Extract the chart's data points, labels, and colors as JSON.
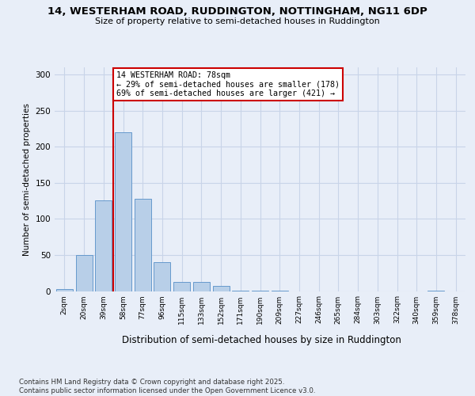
{
  "title": "14, WESTERHAM ROAD, RUDDINGTON, NOTTINGHAM, NG11 6DP",
  "subtitle": "Size of property relative to semi-detached houses in Ruddington",
  "xlabel": "Distribution of semi-detached houses by size in Ruddington",
  "ylabel": "Number of semi-detached properties",
  "bin_labels": [
    "2sqm",
    "20sqm",
    "39sqm",
    "58sqm",
    "77sqm",
    "96sqm",
    "115sqm",
    "133sqm",
    "152sqm",
    "171sqm",
    "190sqm",
    "209sqm",
    "227sqm",
    "246sqm",
    "265sqm",
    "284sqm",
    "303sqm",
    "322sqm",
    "340sqm",
    "359sqm",
    "378sqm"
  ],
  "bin_values": [
    3,
    50,
    126,
    220,
    128,
    40,
    13,
    13,
    7,
    1,
    1,
    1,
    0,
    0,
    0,
    0,
    0,
    0,
    0,
    1,
    0
  ],
  "bar_color": "#b8cfe8",
  "bar_edge_color": "#6699cc",
  "property_label": "14 WESTERHAM ROAD: 78sqm",
  "pct_smaller": 29,
  "pct_larger": 69,
  "n_smaller": 178,
  "n_larger": 421,
  "vline_bin_index": 3,
  "annotation_box_color": "#ffffff",
  "annotation_box_edge": "#cc0000",
  "vline_color": "#cc0000",
  "grid_color": "#c8d4e8",
  "background_color": "#e8eef8",
  "footer": "Contains HM Land Registry data © Crown copyright and database right 2025.\nContains public sector information licensed under the Open Government Licence v3.0.",
  "ylim": [
    0,
    310
  ],
  "yticks": [
    0,
    50,
    100,
    150,
    200,
    250,
    300
  ]
}
